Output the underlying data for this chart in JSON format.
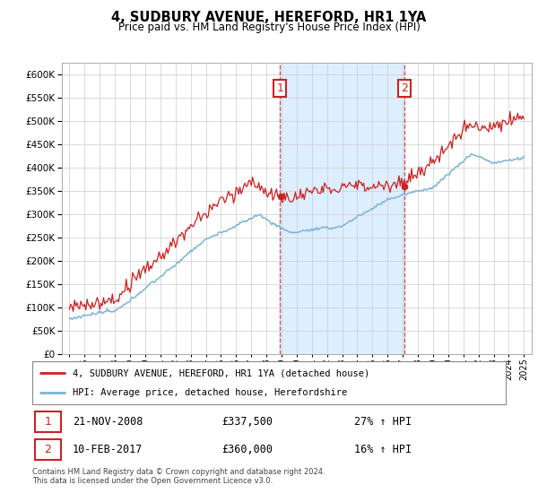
{
  "title": "4, SUDBURY AVENUE, HEREFORD, HR1 1YA",
  "subtitle": "Price paid vs. HM Land Registry's House Price Index (HPI)",
  "hpi_label": "HPI: Average price, detached house, Herefordshire",
  "property_label": "4, SUDBURY AVENUE, HEREFORD, HR1 1YA (detached house)",
  "sale1_date": "21-NOV-2008",
  "sale1_price": 337500,
  "sale1_label": "£337,500",
  "sale1_hpi_pct": "27% ↑ HPI",
  "sale2_date": "10-FEB-2017",
  "sale2_price": 360000,
  "sale2_label": "£360,000",
  "sale2_hpi_pct": "16% ↑ HPI",
  "sale1_year": 2008.9,
  "sale2_year": 2017.1,
  "hpi_color": "#7ab4d8",
  "property_color": "#cc2222",
  "annotation_color": "#cc2222",
  "vline_color": "#cc2222",
  "shading_color": "#ddeeff",
  "ylim": [
    0,
    625000
  ],
  "yticks": [
    0,
    50000,
    100000,
    150000,
    200000,
    250000,
    300000,
    350000,
    400000,
    450000,
    500000,
    550000,
    600000
  ],
  "footnote": "Contains HM Land Registry data © Crown copyright and database right 2024.\nThis data is licensed under the Open Government Licence v3.0."
}
